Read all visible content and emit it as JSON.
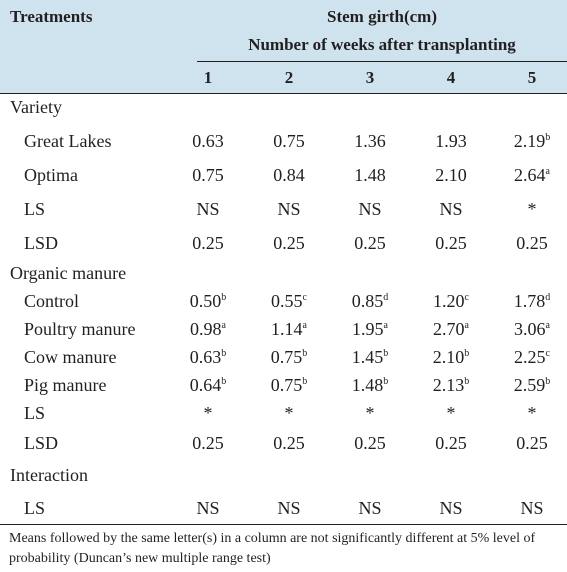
{
  "header": {
    "treatments": "Treatments",
    "stem_girth": "Stem girth(cm)",
    "weeks": "Number of weeks after transplanting",
    "columns": [
      "1",
      "2",
      "3",
      "4",
      "5"
    ]
  },
  "rows": [
    {
      "type": "section",
      "label": "Variety"
    },
    {
      "type": "data",
      "label": "Great Lakes",
      "cells": [
        {
          "v": "0.63",
          "s": ""
        },
        {
          "v": "0.75",
          "s": ""
        },
        {
          "v": "1.36",
          "s": ""
        },
        {
          "v": "1.93",
          "s": ""
        },
        {
          "v": "2.19",
          "s": "b"
        }
      ]
    },
    {
      "type": "data",
      "label": "Optima",
      "cells": [
        {
          "v": "0.75",
          "s": ""
        },
        {
          "v": "0.84",
          "s": ""
        },
        {
          "v": "1.48",
          "s": ""
        },
        {
          "v": "2.10",
          "s": ""
        },
        {
          "v": "2.64",
          "s": "a"
        }
      ]
    },
    {
      "type": "data",
      "label": "LS",
      "cells": [
        {
          "v": "NS",
          "s": ""
        },
        {
          "v": "NS",
          "s": ""
        },
        {
          "v": "NS",
          "s": ""
        },
        {
          "v": "NS",
          "s": ""
        },
        {
          "v": "*",
          "s": ""
        }
      ]
    },
    {
      "type": "data",
      "label": "LSD",
      "cells": [
        {
          "v": "0.25",
          "s": ""
        },
        {
          "v": "0.25",
          "s": ""
        },
        {
          "v": "0.25",
          "s": ""
        },
        {
          "v": "0.25",
          "s": ""
        },
        {
          "v": "0.25",
          "s": ""
        }
      ]
    },
    {
      "type": "section",
      "label": "Organic manure"
    },
    {
      "type": "data",
      "label": "Control",
      "cells": [
        {
          "v": "0.50",
          "s": "b"
        },
        {
          "v": "0.55",
          "s": "c"
        },
        {
          "v": "0.85",
          "s": "d"
        },
        {
          "v": "1.20",
          "s": "c"
        },
        {
          "v": "1.78",
          "s": "d"
        }
      ]
    },
    {
      "type": "data",
      "label": "Poultry manure",
      "cells": [
        {
          "v": "0.98",
          "s": "a"
        },
        {
          "v": "1.14",
          "s": "a"
        },
        {
          "v": "1.95",
          "s": "a"
        },
        {
          "v": "2.70",
          "s": "a"
        },
        {
          "v": "3.06",
          "s": "a"
        }
      ]
    },
    {
      "type": "data",
      "label": "Cow manure",
      "cells": [
        {
          "v": "0.63",
          "s": "b"
        },
        {
          "v": "0.75",
          "s": "b"
        },
        {
          "v": "1.45",
          "s": "b"
        },
        {
          "v": "2.10",
          "s": "b"
        },
        {
          "v": "2.25",
          "s": "c"
        }
      ]
    },
    {
      "type": "data",
      "label": "Pig manure",
      "cells": [
        {
          "v": "0.64",
          "s": "b"
        },
        {
          "v": "0.75",
          "s": "b"
        },
        {
          "v": "1.48",
          "s": "b"
        },
        {
          "v": "2.13",
          "s": "b"
        },
        {
          "v": "2.59",
          "s": "b"
        }
      ]
    },
    {
      "type": "data",
      "label": "LS",
      "cells": [
        {
          "v": "*",
          "s": ""
        },
        {
          "v": "*",
          "s": ""
        },
        {
          "v": "*",
          "s": ""
        },
        {
          "v": "*",
          "s": ""
        },
        {
          "v": "*",
          "s": ""
        }
      ]
    },
    {
      "type": "data",
      "label": "LSD",
      "cells": [
        {
          "v": "0.25",
          "s": ""
        },
        {
          "v": "0.25",
          "s": ""
        },
        {
          "v": "0.25",
          "s": ""
        },
        {
          "v": "0.25",
          "s": ""
        },
        {
          "v": "0.25",
          "s": ""
        }
      ]
    },
    {
      "type": "section",
      "label": "Interaction"
    },
    {
      "type": "data",
      "label": "LS",
      "cells": [
        {
          "v": "NS",
          "s": ""
        },
        {
          "v": "NS",
          "s": ""
        },
        {
          "v": "NS",
          "s": ""
        },
        {
          "v": "NS",
          "s": ""
        },
        {
          "v": "NS",
          "s": ""
        }
      ]
    }
  ],
  "footnote": "Means followed by the same letter(s) in a column are not significantly different at 5% level of probability (Duncan’s new multiple range test)",
  "colors": {
    "header_bg": "#cfe3ef",
    "text": "#231f20"
  }
}
